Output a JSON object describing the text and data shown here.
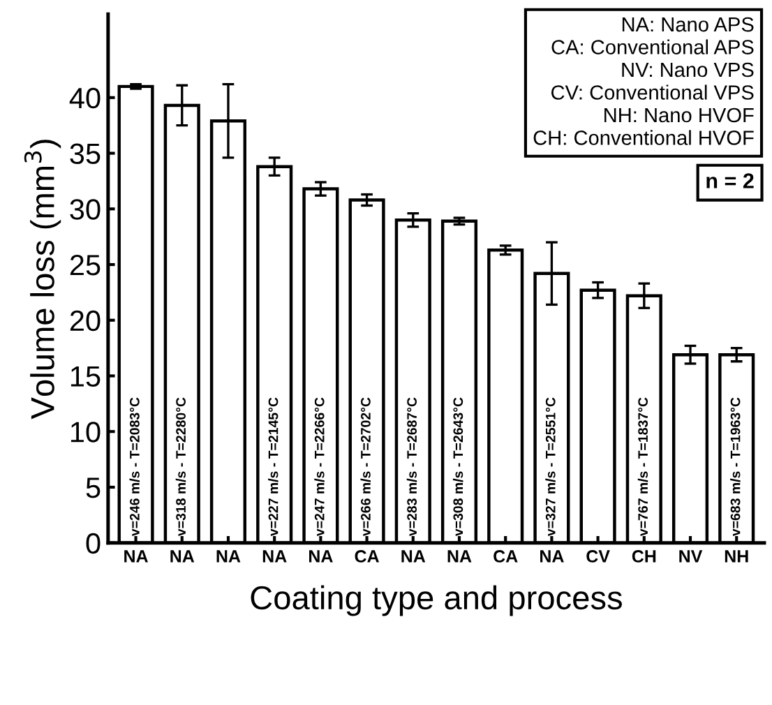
{
  "chart_data": {
    "type": "bar",
    "xlabel": "Coating type and process",
    "ylabel": "Volume loss (mm$^{3}$)",
    "categories": [
      "NA",
      "NA",
      "NA",
      "NA",
      "NA",
      "CA",
      "NA",
      "NA",
      "CA",
      "NA",
      "CV",
      "CH",
      "NV",
      "NH"
    ],
    "values": [
      41.0,
      39.3,
      37.9,
      33.8,
      31.8,
      30.8,
      29.0,
      28.9,
      26.3,
      24.2,
      22.7,
      22.2,
      16.9,
      16.9
    ],
    "errors": [
      0.2,
      1.8,
      3.3,
      0.8,
      0.6,
      0.5,
      0.6,
      0.3,
      0.4,
      2.8,
      0.7,
      1.1,
      0.8,
      0.6
    ],
    "value_labels": [
      "v=246 m/s - T=2083°C",
      "v=318 m/s - T=2280°C",
      null,
      "v=227 m/s - T=2145°C",
      "v=247 m/s - T=2266°C",
      "v=266 m/s - T=2702°C",
      "v=283 m/s - T=2687°C",
      "v=308 m/s - T=2643°C",
      null,
      "v=327 m/s - T=2551°C",
      null,
      "v=767 m/s - T=1837°C",
      null,
      "v=683 m/s - T=1963°C"
    ],
    "color": "#ffffff",
    "ylim": [
      0,
      47.5
    ],
    "yticks": [
      0,
      5,
      10,
      15,
      20,
      25,
      30,
      35,
      40
    ],
    "annotations": [
      "NA: Nano APS\nCA: Conventional APS\nNV: Nano VPS\nCV: Conventional VPS\nNH: Nano HVOF\nCH: Conventional HVOF",
      "n = 2"
    ],
    "grid": false,
    "legend": false
  }
}
